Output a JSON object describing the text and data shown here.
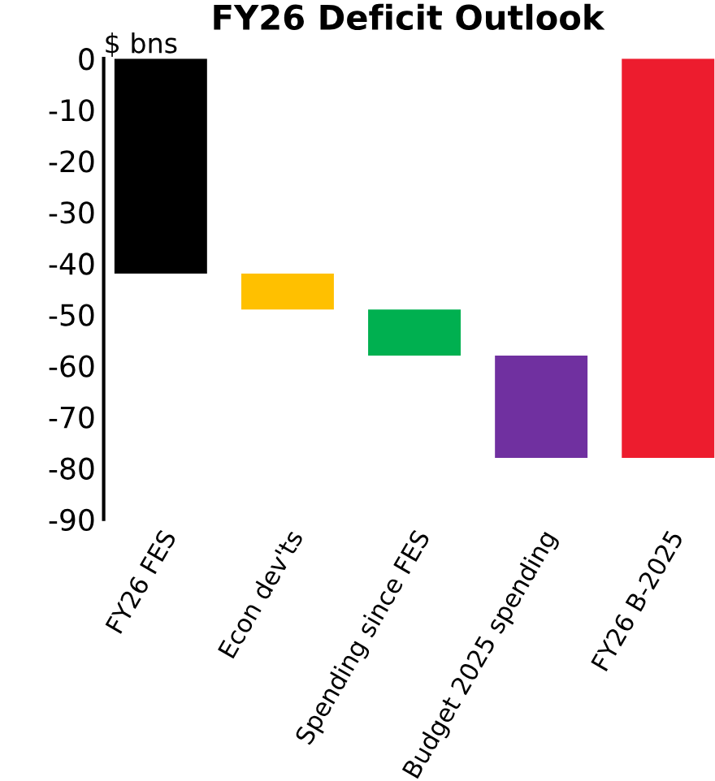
{
  "chart_data": {
    "type": "bar",
    "title": "FY26 Deficit Outlook",
    "ylabel": "$ bns",
    "categories": [
      "FY26 FES",
      "Econ dev'ts",
      "Spending since FES",
      "Budget 2025 spending",
      "FY26 B-2025"
    ],
    "values": [
      -42,
      -7,
      -9,
      -20,
      -78
    ],
    "base": [
      0,
      -42,
      -49,
      -58,
      0
    ],
    "colors": [
      "#000000",
      "#ffc000",
      "#00b050",
      "#7030a0",
      "#ed1c2e"
    ],
    "ylim": [
      -90,
      0
    ],
    "yticks": [
      -90,
      -80,
      -70,
      -60,
      -50,
      -40,
      -30,
      -20,
      -10,
      0
    ],
    "grid": false,
    "legend": false
  }
}
